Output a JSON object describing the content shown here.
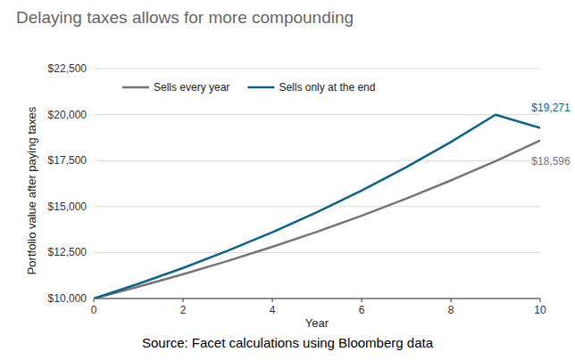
{
  "chart_data": {
    "type": "line",
    "title": "Delaying taxes allows for more compounding",
    "x_label": "Year",
    "y_label": "Portfolio value after paying taxes",
    "source": "Source: Facet calculations using Bloomberg data",
    "x": [
      0,
      1,
      2,
      3,
      4,
      5,
      6,
      7,
      8,
      9,
      10
    ],
    "series": [
      {
        "name": "Sells every year",
        "color": "#757575",
        "values": [
          10000,
          10640,
          11320,
          12040,
          12810,
          13630,
          14500,
          15430,
          16420,
          17470,
          18596
        ],
        "value_labels": [
          null,
          null,
          null,
          null,
          null,
          null,
          null,
          null,
          null,
          null,
          "$18,596"
        ]
      },
      {
        "name": "Sells only at the end",
        "color": "#0e6384",
        "values": [
          10000,
          10800,
          11660,
          12600,
          13600,
          14690,
          15870,
          17140,
          18510,
          19990,
          19271
        ],
        "value_labels": [
          null,
          null,
          null,
          null,
          null,
          null,
          null,
          null,
          null,
          null,
          "$19,271"
        ]
      }
    ],
    "xlim": [
      0,
      10
    ],
    "xticks": [
      0,
      2,
      4,
      6,
      8,
      10
    ],
    "ylim": [
      10000,
      22500
    ],
    "yticks": [
      {
        "value": 10000,
        "label": "$10,000"
      },
      {
        "value": 12500,
        "label": "$12,500"
      },
      {
        "value": 15000,
        "label": "$15,000"
      },
      {
        "value": 17500,
        "label": "$17,500"
      },
      {
        "value": 20000,
        "label": "$20,000"
      },
      {
        "value": 22500,
        "label": "$22,500"
      }
    ],
    "grid": true,
    "legend": "top-left",
    "data_labels": true
  }
}
